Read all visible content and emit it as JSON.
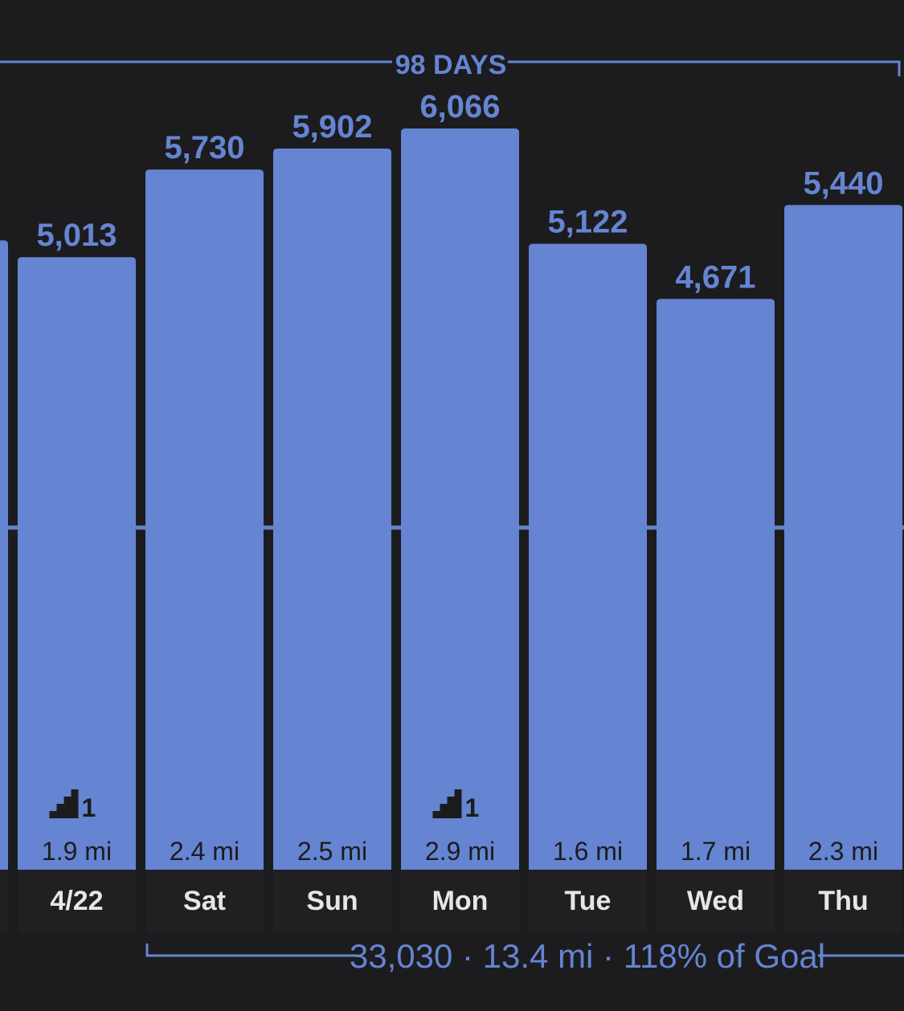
{
  "colors": {
    "background": "#1c1c1e",
    "bar": "#6584d2",
    "accent": "#6584d2",
    "day_label": "#e6e6e6",
    "dark_text": "#1c1c1e",
    "column_bg": "#202022"
  },
  "streak": {
    "label": "98 DAYS"
  },
  "summary": {
    "text": "33,030 · 13.4 mi · 118% of Goal"
  },
  "chart_data": {
    "type": "bar",
    "categories": [
      "",
      "4/22",
      "Sat",
      "Sun",
      "Mon",
      "Tue",
      "Wed",
      "Thu"
    ],
    "values": [
      5150,
      5013,
      5730,
      5902,
      6066,
      5122,
      4671,
      5440
    ],
    "value_labels": [
      "",
      "5,013",
      "5,730",
      "5,902",
      "6,066",
      "5,122",
      "4,671",
      "5,440"
    ],
    "distance_labels": [
      "",
      "1.9 mi",
      "2.4 mi",
      "2.5 mi",
      "2.9 mi",
      "1.6 mi",
      "1.7 mi",
      "2.3 mi"
    ],
    "flights_labels": [
      "",
      "1",
      "",
      "",
      "1",
      "",
      "",
      ""
    ],
    "goal_line": 2800,
    "ylim": [
      0,
      6500
    ],
    "flights_icon": "stairs-icon"
  }
}
